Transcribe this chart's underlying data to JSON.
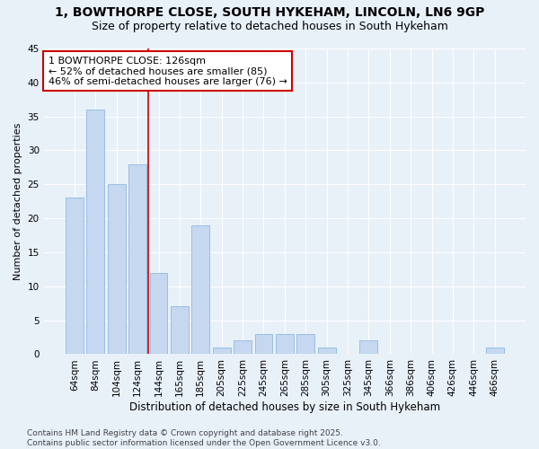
{
  "title_line1": "1, BOWTHORPE CLOSE, SOUTH HYKEHAM, LINCOLN, LN6 9GP",
  "title_line2": "Size of property relative to detached houses in South Hykeham",
  "xlabel": "Distribution of detached houses by size in South Hykeham",
  "ylabel": "Number of detached properties",
  "bar_color": "#c5d8f0",
  "bar_edge_color": "#8fb8e0",
  "background_color": "#e8f0f8",
  "grid_color": "#ffffff",
  "categories": [
    "64sqm",
    "84sqm",
    "104sqm",
    "124sqm",
    "144sqm",
    "165sqm",
    "185sqm",
    "205sqm",
    "225sqm",
    "245sqm",
    "265sqm",
    "285sqm",
    "305sqm",
    "325sqm",
    "345sqm",
    "366sqm",
    "386sqm",
    "406sqm",
    "426sqm",
    "446sqm",
    "466sqm"
  ],
  "values": [
    23,
    36,
    25,
    28,
    12,
    7,
    19,
    1,
    2,
    3,
    3,
    3,
    1,
    0,
    2,
    0,
    0,
    0,
    0,
    0,
    1
  ],
  "vline_x": 3.5,
  "vline_color": "#cc0000",
  "annotation_text": "1 BOWTHORPE CLOSE: 126sqm\n← 52% of detached houses are smaller (85)\n46% of semi-detached houses are larger (76) →",
  "annotation_box_color": "#ffffff",
  "annotation_box_edge": "#cc0000",
  "footer_text": "Contains HM Land Registry data © Crown copyright and database right 2025.\nContains public sector information licensed under the Open Government Licence v3.0.",
  "ylim": [
    0,
    45
  ],
  "yticks": [
    0,
    5,
    10,
    15,
    20,
    25,
    30,
    35,
    40,
    45
  ],
  "title1_fontsize": 10,
  "title2_fontsize": 9,
  "tick_fontsize": 7.5,
  "ylabel_fontsize": 8,
  "xlabel_fontsize": 8.5,
  "footer_fontsize": 6.5,
  "annot_fontsize": 8
}
